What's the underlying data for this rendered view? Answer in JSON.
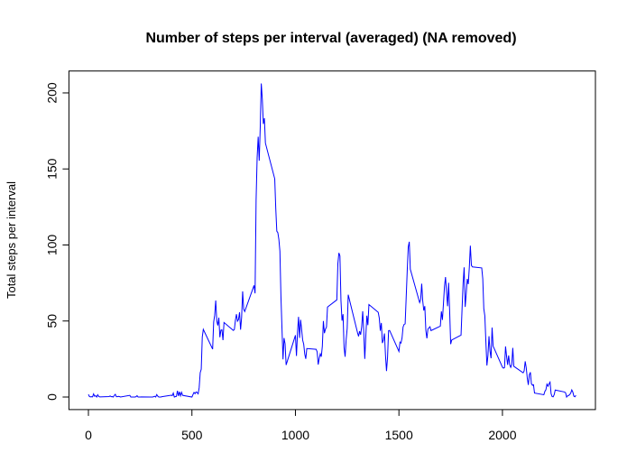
{
  "chart_data": {
    "type": "line",
    "title": "Number of steps per interval (averaged) (NA removed)",
    "y_label": "Total steps per interval",
    "x": [
      0,
      5,
      10,
      15,
      20,
      25,
      30,
      35,
      40,
      45,
      50,
      55,
      100,
      105,
      110,
      115,
      120,
      125,
      130,
      135,
      140,
      145,
      150,
      155,
      200,
      205,
      210,
      215,
      220,
      225,
      230,
      235,
      240,
      245,
      250,
      255,
      300,
      305,
      310,
      315,
      320,
      325,
      330,
      335,
      340,
      345,
      350,
      355,
      400,
      405,
      410,
      415,
      420,
      425,
      430,
      435,
      440,
      445,
      450,
      455,
      500,
      505,
      510,
      515,
      520,
      525,
      530,
      535,
      540,
      545,
      550,
      555,
      600,
      605,
      610,
      615,
      620,
      625,
      630,
      635,
      640,
      645,
      650,
      655,
      700,
      705,
      710,
      715,
      720,
      725,
      730,
      735,
      740,
      745,
      750,
      755,
      800,
      805,
      810,
      815,
      820,
      825,
      830,
      835,
      840,
      845,
      850,
      855,
      900,
      905,
      910,
      915,
      920,
      925,
      930,
      935,
      940,
      945,
      950,
      955,
      1000,
      1005,
      1010,
      1015,
      1020,
      1025,
      1030,
      1035,
      1040,
      1045,
      1050,
      1055,
      1100,
      1105,
      1110,
      1115,
      1120,
      1125,
      1130,
      1135,
      1140,
      1145,
      1150,
      1155,
      1200,
      1205,
      1210,
      1215,
      1220,
      1225,
      1230,
      1235,
      1240,
      1245,
      1250,
      1255,
      1300,
      1305,
      1310,
      1315,
      1320,
      1325,
      1330,
      1335,
      1340,
      1345,
      1350,
      1355,
      1400,
      1405,
      1410,
      1415,
      1420,
      1425,
      1430,
      1435,
      1440,
      1445,
      1450,
      1455,
      1500,
      1505,
      1510,
      1515,
      1520,
      1525,
      1530,
      1535,
      1540,
      1545,
      1550,
      1555,
      1600,
      1605,
      1610,
      1615,
      1620,
      1625,
      1630,
      1635,
      1640,
      1645,
      1650,
      1655,
      1700,
      1705,
      1710,
      1715,
      1720,
      1725,
      1730,
      1735,
      1740,
      1745,
      1750,
      1755,
      1800,
      1805,
      1810,
      1815,
      1820,
      1825,
      1830,
      1835,
      1840,
      1845,
      1850,
      1855,
      1900,
      1905,
      1910,
      1915,
      1920,
      1925,
      1930,
      1935,
      1940,
      1945,
      1950,
      1955,
      2000,
      2005,
      2010,
      2015,
      2020,
      2025,
      2030,
      2035,
      2040,
      2045,
      2050,
      2055,
      2100,
      2105,
      2110,
      2115,
      2120,
      2125,
      2130,
      2135,
      2140,
      2145,
      2150,
      2155,
      2200,
      2205,
      2210,
      2215,
      2220,
      2225,
      2230,
      2235,
      2240,
      2245,
      2250,
      2255,
      2300,
      2305,
      2310,
      2315,
      2320,
      2325,
      2330,
      2335,
      2340,
      2345,
      2350,
      2355
    ],
    "series": [
      {
        "color": "#0000ff",
        "values": [
          1.7,
          0.3,
          0.1,
          0.2,
          0.1,
          2.1,
          0.5,
          0.9,
          0,
          1.5,
          0.3,
          0.1,
          0.3,
          0.7,
          0.2,
          0.3,
          0,
          1.1,
          1.8,
          0.2,
          0.2,
          0.4,
          0.3,
          0,
          1.1,
          0,
          0,
          0,
          0,
          0,
          0.2,
          0.9,
          0,
          0,
          0,
          0.1,
          0,
          0,
          0,
          0.2,
          0.5,
          0,
          1.6,
          0.6,
          0,
          0,
          0,
          0.2,
          1.2,
          0.9,
          2.6,
          0,
          0.3,
          0.4,
          4.1,
          0.7,
          3.5,
          0.8,
          3.1,
          1.1,
          0,
          1.6,
          3.0,
          2.2,
          3.3,
          3.0,
          2.1,
          6.1,
          16.0,
          18.3,
          39.5,
          44.5,
          31.5,
          49.3,
          53.8,
          63.5,
          50.0,
          47.1,
          52.2,
          39.3,
          44.0,
          44.2,
          37.4,
          49.0,
          43.8,
          44.4,
          50.5,
          54.5,
          49.9,
          51.0,
          55.7,
          44.3,
          52.3,
          69.5,
          57.8,
          56.2,
          73.4,
          68.2,
          129.4,
          157.5,
          171.2,
          155.4,
          177.3,
          206.2,
          195.9,
          179.6,
          183.4,
          167.0,
          143.5,
          124.0,
          109.1,
          108.1,
          103.7,
          96.0,
          66.2,
          45.2,
          24.8,
          38.8,
          35.0,
          21.1,
          40.6,
          27.0,
          42.4,
          52.7,
          38.9,
          50.8,
          44.3,
          37.4,
          34.7,
          28.3,
          25.1,
          31.9,
          31.4,
          29.7,
          21.3,
          25.5,
          28.4,
          26.5,
          33.4,
          50.0,
          42.0,
          44.6,
          46.0,
          59.2,
          63.9,
          87.7,
          94.8,
          92.8,
          63.4,
          50.2,
          54.5,
          32.4,
          26.5,
          37.7,
          45.1,
          67.3,
          42.3,
          39.9,
          43.3,
          41.0,
          46.2,
          56.4,
          42.8,
          25.1,
          40.0,
          53.5,
          47.3,
          60.8,
          55.7,
          52.0,
          43.6,
          48.7,
          35.5,
          37.5,
          41.8,
          27.5,
          17.1,
          26.1,
          43.6,
          43.8,
          30.0,
          36.1,
          35.5,
          38.8,
          46.0,
          47.8,
          48.1,
          65.3,
          82.9,
          98.7,
          102.1,
          84.0,
          62.1,
          64.1,
          74.5,
          63.2,
          56.9,
          59.8,
          43.9,
          38.6,
          44.7,
          45.5,
          46.2,
          43.7,
          46.6,
          56.3,
          50.7,
          61.2,
          72.7,
          78.9,
          68.9,
          59.7,
          75.1,
          56.5,
          34.8,
          37.5,
          40.7,
          58.0,
          74.7,
          85.3,
          59.3,
          67.8,
          77.7,
          74.2,
          85.3,
          99.5,
          86.6,
          85.6,
          84.9,
          77.8,
          58.0,
          53.4,
          36.3,
          20.7,
          27.4,
          40.0,
          30.2,
          25.5,
          45.7,
          33.5,
          19.6,
          19.0,
          19.3,
          33.3,
          26.8,
          21.2,
          27.3,
          21.3,
          19.5,
          21.3,
          32.3,
          20.2,
          15.9,
          17.2,
          23.5,
          19.2,
          12.5,
          8.0,
          14.7,
          16.3,
          8.7,
          7.8,
          8.1,
          2.6,
          1.5,
          3.7,
          4.8,
          8.5,
          7.1,
          8.7,
          9.8,
          2.2,
          0.3,
          0.1,
          1.6,
          4.6,
          3.3,
          2.8,
          0,
          0.8,
          1.0,
          1.6,
          2.6,
          4.7,
          3.3,
          0.6,
          0.2,
          1.1
        ]
      }
    ],
    "xlim": [
      -94.2,
      2449.2
    ],
    "ylim": [
      -8.25,
      214.4
    ],
    "xticks": [
      0,
      500,
      1000,
      1500,
      2000
    ],
    "yticks": [
      0,
      50,
      100,
      150,
      200
    ]
  }
}
